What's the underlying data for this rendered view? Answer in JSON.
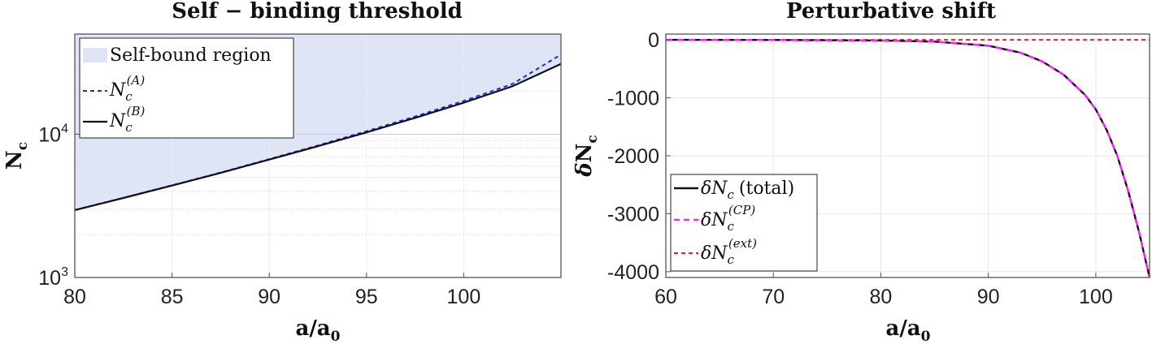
{
  "chart_data": [
    {
      "type": "line",
      "title": "Self − binding threshold",
      "xlabel": "a/a0",
      "ylabel": "Nc",
      "yscale": "log",
      "xlim": [
        80,
        105
      ],
      "ylim": [
        1000,
        50000
      ],
      "x_ticks": [
        "80",
        "85",
        "90",
        "95",
        "100"
      ],
      "y_tick_bases": [
        "10",
        "10"
      ],
      "y_tick_exponents": [
        "3",
        "4"
      ],
      "grid": true,
      "legend_position": "top-left",
      "shaded_region": {
        "name": "Self-bound region",
        "color": "#dfe5f6",
        "above_series": "N_c^(B)"
      },
      "series": [
        {
          "name": "N_c^(A)",
          "legend_base": "N",
          "legend_sub": "c",
          "legend_sup": "(A)",
          "color": "#1f2ddb",
          "style": "dashed",
          "x": [
            80,
            82.5,
            85,
            87.5,
            90,
            92.5,
            95,
            97.5,
            100,
            102.5,
            105
          ],
          "y": [
            2960,
            3600,
            4400,
            5400,
            6700,
            8350,
            10500,
            13300,
            17100,
            22400,
            36000
          ]
        },
        {
          "name": "N_c^(B)",
          "legend_base": "N",
          "legend_sub": "c",
          "legend_sup": "(B)",
          "color": "#111111",
          "style": "solid",
          "x": [
            80,
            82.5,
            85,
            87.5,
            90,
            92.5,
            95,
            97.5,
            100,
            102.5,
            105
          ],
          "y": [
            2950,
            3590,
            4380,
            5370,
            6650,
            8250,
            10300,
            13000,
            16600,
            21600,
            31000
          ]
        }
      ]
    },
    {
      "type": "line",
      "title": "Perturbative shift",
      "xlabel": "a/a0",
      "ylabel": "δNc",
      "xlim": [
        60,
        105
      ],
      "ylim": [
        -4100,
        100
      ],
      "x_ticks": [
        "60",
        "70",
        "80",
        "90",
        "100"
      ],
      "y_ticks": [
        "0",
        "-1000",
        "-2000",
        "-3000",
        "-4000"
      ],
      "grid": true,
      "legend_position": "bottom-left",
      "series": [
        {
          "name": "δN_c (total)",
          "legend_main": "δN",
          "legend_sub": "c",
          "legend_sup": "",
          "legend_suffix": "(total)",
          "color": "#111111",
          "style": "solid",
          "x": [
            60,
            70,
            80,
            85,
            90,
            93,
            95,
            97,
            99,
            100,
            101,
            102,
            103,
            104,
            105
          ],
          "y": [
            0,
            -2,
            -10,
            -30,
            -100,
            -220,
            -370,
            -600,
            -950,
            -1200,
            -1550,
            -2000,
            -2600,
            -3300,
            -4100
          ]
        },
        {
          "name": "δN_c^(CP)",
          "legend_main": "δN",
          "legend_sub": "c",
          "legend_sup": "(CP)",
          "legend_suffix": "",
          "color": "#ff22ff",
          "style": "dashed",
          "x": [
            60,
            70,
            80,
            85,
            90,
            93,
            95,
            97,
            99,
            100,
            101,
            102,
            103,
            104,
            105
          ],
          "y": [
            0,
            -2,
            -10,
            -30,
            -100,
            -220,
            -370,
            -600,
            -950,
            -1200,
            -1550,
            -2000,
            -2600,
            -3300,
            -4100
          ]
        },
        {
          "name": "δN_c^(ext)",
          "legend_main": "δN",
          "legend_sub": "c",
          "legend_sup": "(ext)",
          "legend_suffix": "",
          "color": "#e8232b",
          "style": "dashed",
          "x": [
            60,
            105
          ],
          "y": [
            0,
            0
          ]
        }
      ]
    }
  ]
}
